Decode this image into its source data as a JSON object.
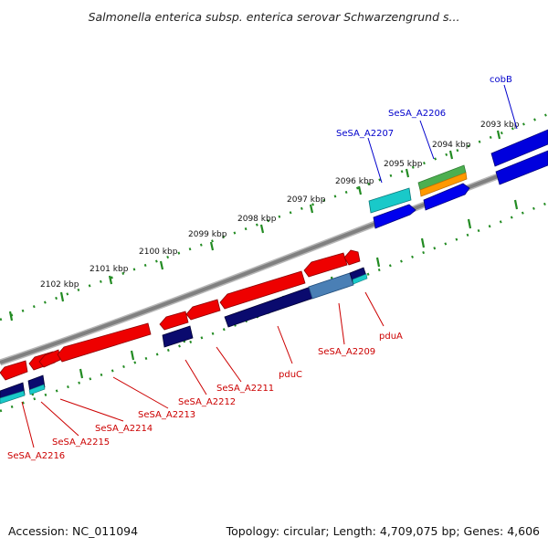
{
  "title": "Salmonella enterica subsp. enterica serovar Schwarzengrund s...",
  "footer": {
    "accession": "Accession: NC_011094",
    "summary": "Topology: circular; Length: 4,709,075 bp; Genes: 4,606"
  },
  "ticks": {
    "outer": [
      "2102 kbp",
      "2101 kbp",
      "2100 kbp",
      "2099 kbp",
      "2098 kbp",
      "2097 kbp",
      "2096 kbp",
      "2095 kbp",
      "2094 kbp",
      "2093 kbp"
    ]
  },
  "genes": {
    "forward_labels": [
      "SeSA_A2207",
      "SeSA_A2206",
      "cobB"
    ],
    "reverse_labels": [
      "SeSA_A2216",
      "SeSA_A2215",
      "SeSA_A2214",
      "SeSA_A2213",
      "SeSA_A2212",
      "SeSA_A2211",
      "pduC",
      "SeSA_A2209",
      "pduA"
    ]
  },
  "colors": {
    "backbone": "#808080",
    "tick": "#228b22",
    "reverse_gene": "#ee0000",
    "forward_gene": "#0000ee",
    "label_forward": "#0000cc",
    "label_reverse": "#cc0000",
    "cds_navy": "#0a0a6e",
    "cyan": "#19c9c9",
    "green": "#4caf50",
    "orange": "#ff9900",
    "steel": "#4a7fb5"
  }
}
